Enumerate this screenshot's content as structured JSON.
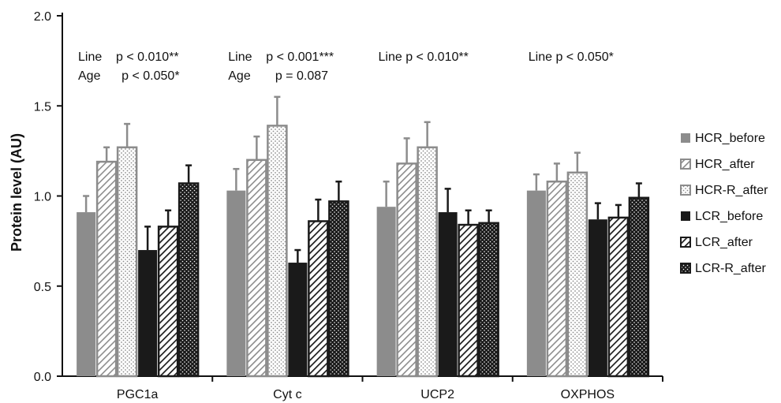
{
  "chart_data": {
    "type": "bar",
    "title": "",
    "xlabel": "",
    "ylabel": "Protein level (AU)",
    "ylim": [
      0,
      2.0
    ],
    "yticks": [
      "0.0",
      "0.5",
      "1.0",
      "1.5",
      "2.0"
    ],
    "grid": false,
    "legend_position": "right",
    "categories": [
      "PGC1a",
      "Cyt c",
      "UCP2",
      "OXPHOS"
    ],
    "series": [
      {
        "name": "HCR_before",
        "values": [
          0.91,
          1.03,
          0.94,
          1.03
        ],
        "errors": [
          0.09,
          0.12,
          0.14,
          0.09
        ],
        "color": "#8c8c8c",
        "pattern": "solid"
      },
      {
        "name": "HCR_after",
        "values": [
          1.19,
          1.2,
          1.18,
          1.08
        ],
        "errors": [
          0.08,
          0.13,
          0.14,
          0.1
        ],
        "color": "#8c8c8c",
        "pattern": "hatch"
      },
      {
        "name": "HCR-R_after",
        "values": [
          1.27,
          1.39,
          1.27,
          1.13
        ],
        "errors": [
          0.13,
          0.16,
          0.14,
          0.11
        ],
        "color": "#8c8c8c",
        "pattern": "dots"
      },
      {
        "name": "LCR_before",
        "values": [
          0.7,
          0.63,
          0.91,
          0.87
        ],
        "errors": [
          0.13,
          0.07,
          0.13,
          0.09
        ],
        "color": "#1a1a1a",
        "pattern": "solid"
      },
      {
        "name": "LCR_after",
        "values": [
          0.83,
          0.86,
          0.84,
          0.88
        ],
        "errors": [
          0.09,
          0.12,
          0.08,
          0.07
        ],
        "color": "#1a1a1a",
        "pattern": "hatch"
      },
      {
        "name": "LCR-R_after",
        "values": [
          1.07,
          0.97,
          0.85,
          0.99
        ],
        "errors": [
          0.1,
          0.11,
          0.07,
          0.08
        ],
        "color": "#1a1a1a",
        "pattern": "dots"
      }
    ],
    "annotations": [
      {
        "category": "PGC1a",
        "lines": [
          "Line    p < 0.010**",
          "Age      p < 0.050*"
        ]
      },
      {
        "category": "Cyt c",
        "lines": [
          "Line    p < 0.001***",
          "Age       p = 0.087"
        ]
      },
      {
        "category": "UCP2",
        "lines": [
          "Line p < 0.010**"
        ]
      },
      {
        "category": "OXPHOS",
        "lines": [
          "Line p < 0.050*"
        ]
      }
    ]
  }
}
